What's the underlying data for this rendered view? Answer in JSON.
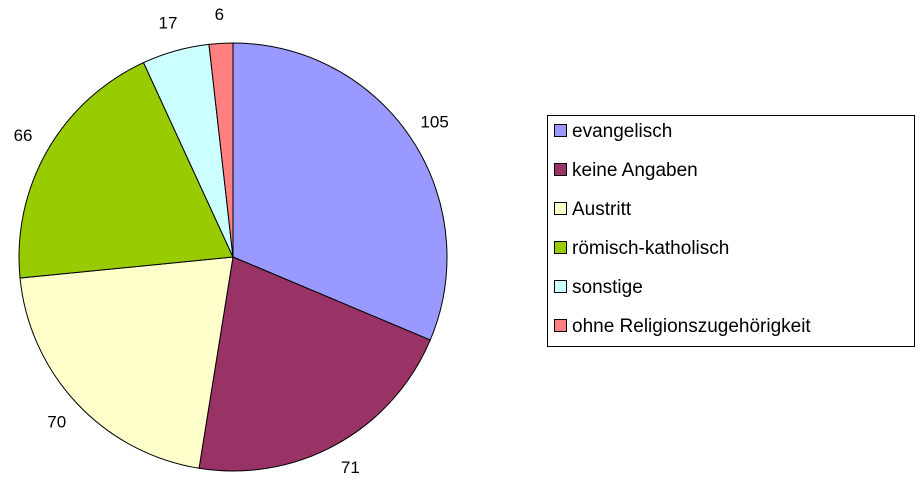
{
  "chart_data": {
    "type": "pie",
    "categories": [
      "evangelisch",
      "keine Angaben",
      "Austritt",
      "römisch-katholisch",
      "sonstige",
      "ohne Religionszugehörigkeit"
    ],
    "values": [
      105,
      71,
      70,
      66,
      17,
      6
    ],
    "colors": [
      "#9999ff",
      "#993366",
      "#ffffcc",
      "#99cc00",
      "#ccffff",
      "#ff8080"
    ],
    "legend": "right"
  }
}
